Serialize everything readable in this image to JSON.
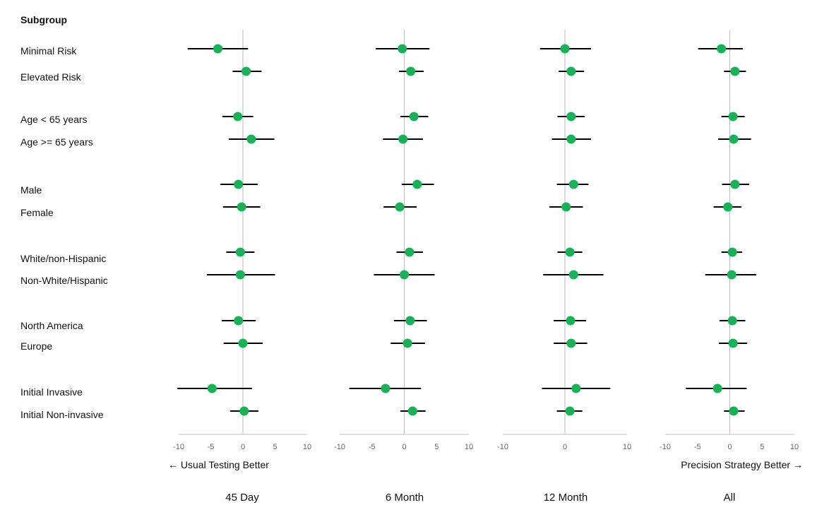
{
  "chart_data": {
    "type": "forest",
    "subgroup_header": "Subgroup",
    "subgroups": [
      "Minimal Risk",
      "Elevated Risk",
      "Age < 65 years",
      "Age >= 65 years",
      "Male",
      "Female",
      "White/non-Hispanic",
      "Non-White/Hispanic",
      "North America",
      "Europe",
      "Initial Invasive",
      "Initial Non-invasive"
    ],
    "direction_left": "← Usual Testing Better",
    "direction_right": "Precision Strategy Better →",
    "panels": [
      {
        "title": "45 Day",
        "ticks": [
          "-10",
          "-5",
          "0",
          "5",
          "10"
        ],
        "tick_values": [
          -10,
          -5,
          0,
          5,
          10
        ],
        "xlim": [
          -10,
          10
        ],
        "estimates": [
          -3.9,
          0.5,
          -0.8,
          1.3,
          -0.7,
          -0.2,
          -0.4,
          -0.4,
          -0.7,
          0.0,
          -4.8,
          0.2
        ],
        "lower": [
          -8.6,
          -1.6,
          -3.2,
          -2.2,
          -3.5,
          -3.1,
          -2.6,
          -5.6,
          -3.3,
          -3.0,
          -10.2,
          -2.0
        ],
        "upper": [
          0.8,
          2.9,
          1.6,
          4.9,
          2.3,
          2.7,
          1.8,
          5.0,
          2.0,
          3.1,
          1.4,
          2.4
        ]
      },
      {
        "title": "6 Month",
        "ticks": [
          "-10",
          "-5",
          "0",
          "5",
          "10"
        ],
        "tick_values": [
          -10,
          -5,
          0,
          5,
          10
        ],
        "xlim": [
          -10,
          10
        ],
        "estimates": [
          -0.3,
          1.0,
          1.5,
          -0.2,
          2.0,
          -0.7,
          0.8,
          0.0,
          0.9,
          0.5,
          -2.9,
          1.3
        ],
        "lower": [
          -4.4,
          -0.8,
          -0.6,
          -3.3,
          -0.4,
          -3.2,
          -1.2,
          -4.7,
          -1.6,
          -2.1,
          -8.5,
          -0.6
        ],
        "upper": [
          3.9,
          3.0,
          3.7,
          2.9,
          4.6,
          1.9,
          2.9,
          4.7,
          3.5,
          3.2,
          2.6,
          3.3
        ]
      },
      {
        "title": "12 Month",
        "ticks": [
          "-10",
          "0",
          "10"
        ],
        "tick_values": [
          -10,
          0,
          10
        ],
        "xlim": [
          -10,
          10
        ],
        "estimates": [
          0.0,
          1.0,
          1.0,
          1.0,
          1.4,
          0.2,
          0.8,
          1.4,
          0.9,
          1.0,
          1.8,
          0.8
        ],
        "lower": [
          -4.0,
          -1.0,
          -1.2,
          -2.1,
          -1.3,
          -2.5,
          -1.2,
          -3.5,
          -1.8,
          -1.8,
          -3.7,
          -1.3
        ],
        "upper": [
          4.2,
          3.1,
          3.2,
          4.2,
          3.8,
          2.9,
          2.8,
          6.2,
          3.4,
          3.6,
          7.3,
          2.8
        ]
      },
      {
        "title": "All",
        "ticks": [
          "-10",
          "-5",
          "0",
          "5",
          "10"
        ],
        "tick_values": [
          -10,
          -5,
          0,
          5,
          10
        ],
        "xlim": [
          -10,
          10
        ],
        "estimates": [
          -1.3,
          0.8,
          0.5,
          0.6,
          0.8,
          -0.3,
          0.4,
          0.3,
          0.4,
          0.5,
          -1.9,
          0.6
        ],
        "lower": [
          -4.9,
          -0.9,
          -1.3,
          -1.8,
          -1.2,
          -2.5,
          -1.3,
          -3.8,
          -1.6,
          -1.7,
          -6.8,
          -0.9
        ],
        "upper": [
          2.0,
          2.5,
          2.3,
          3.3,
          3.0,
          1.8,
          1.9,
          4.1,
          2.4,
          2.7,
          2.6,
          2.3
        ]
      }
    ],
    "marker_color": "#17b257",
    "line_color": "#000000",
    "axis_color": "#bfbfbf"
  }
}
